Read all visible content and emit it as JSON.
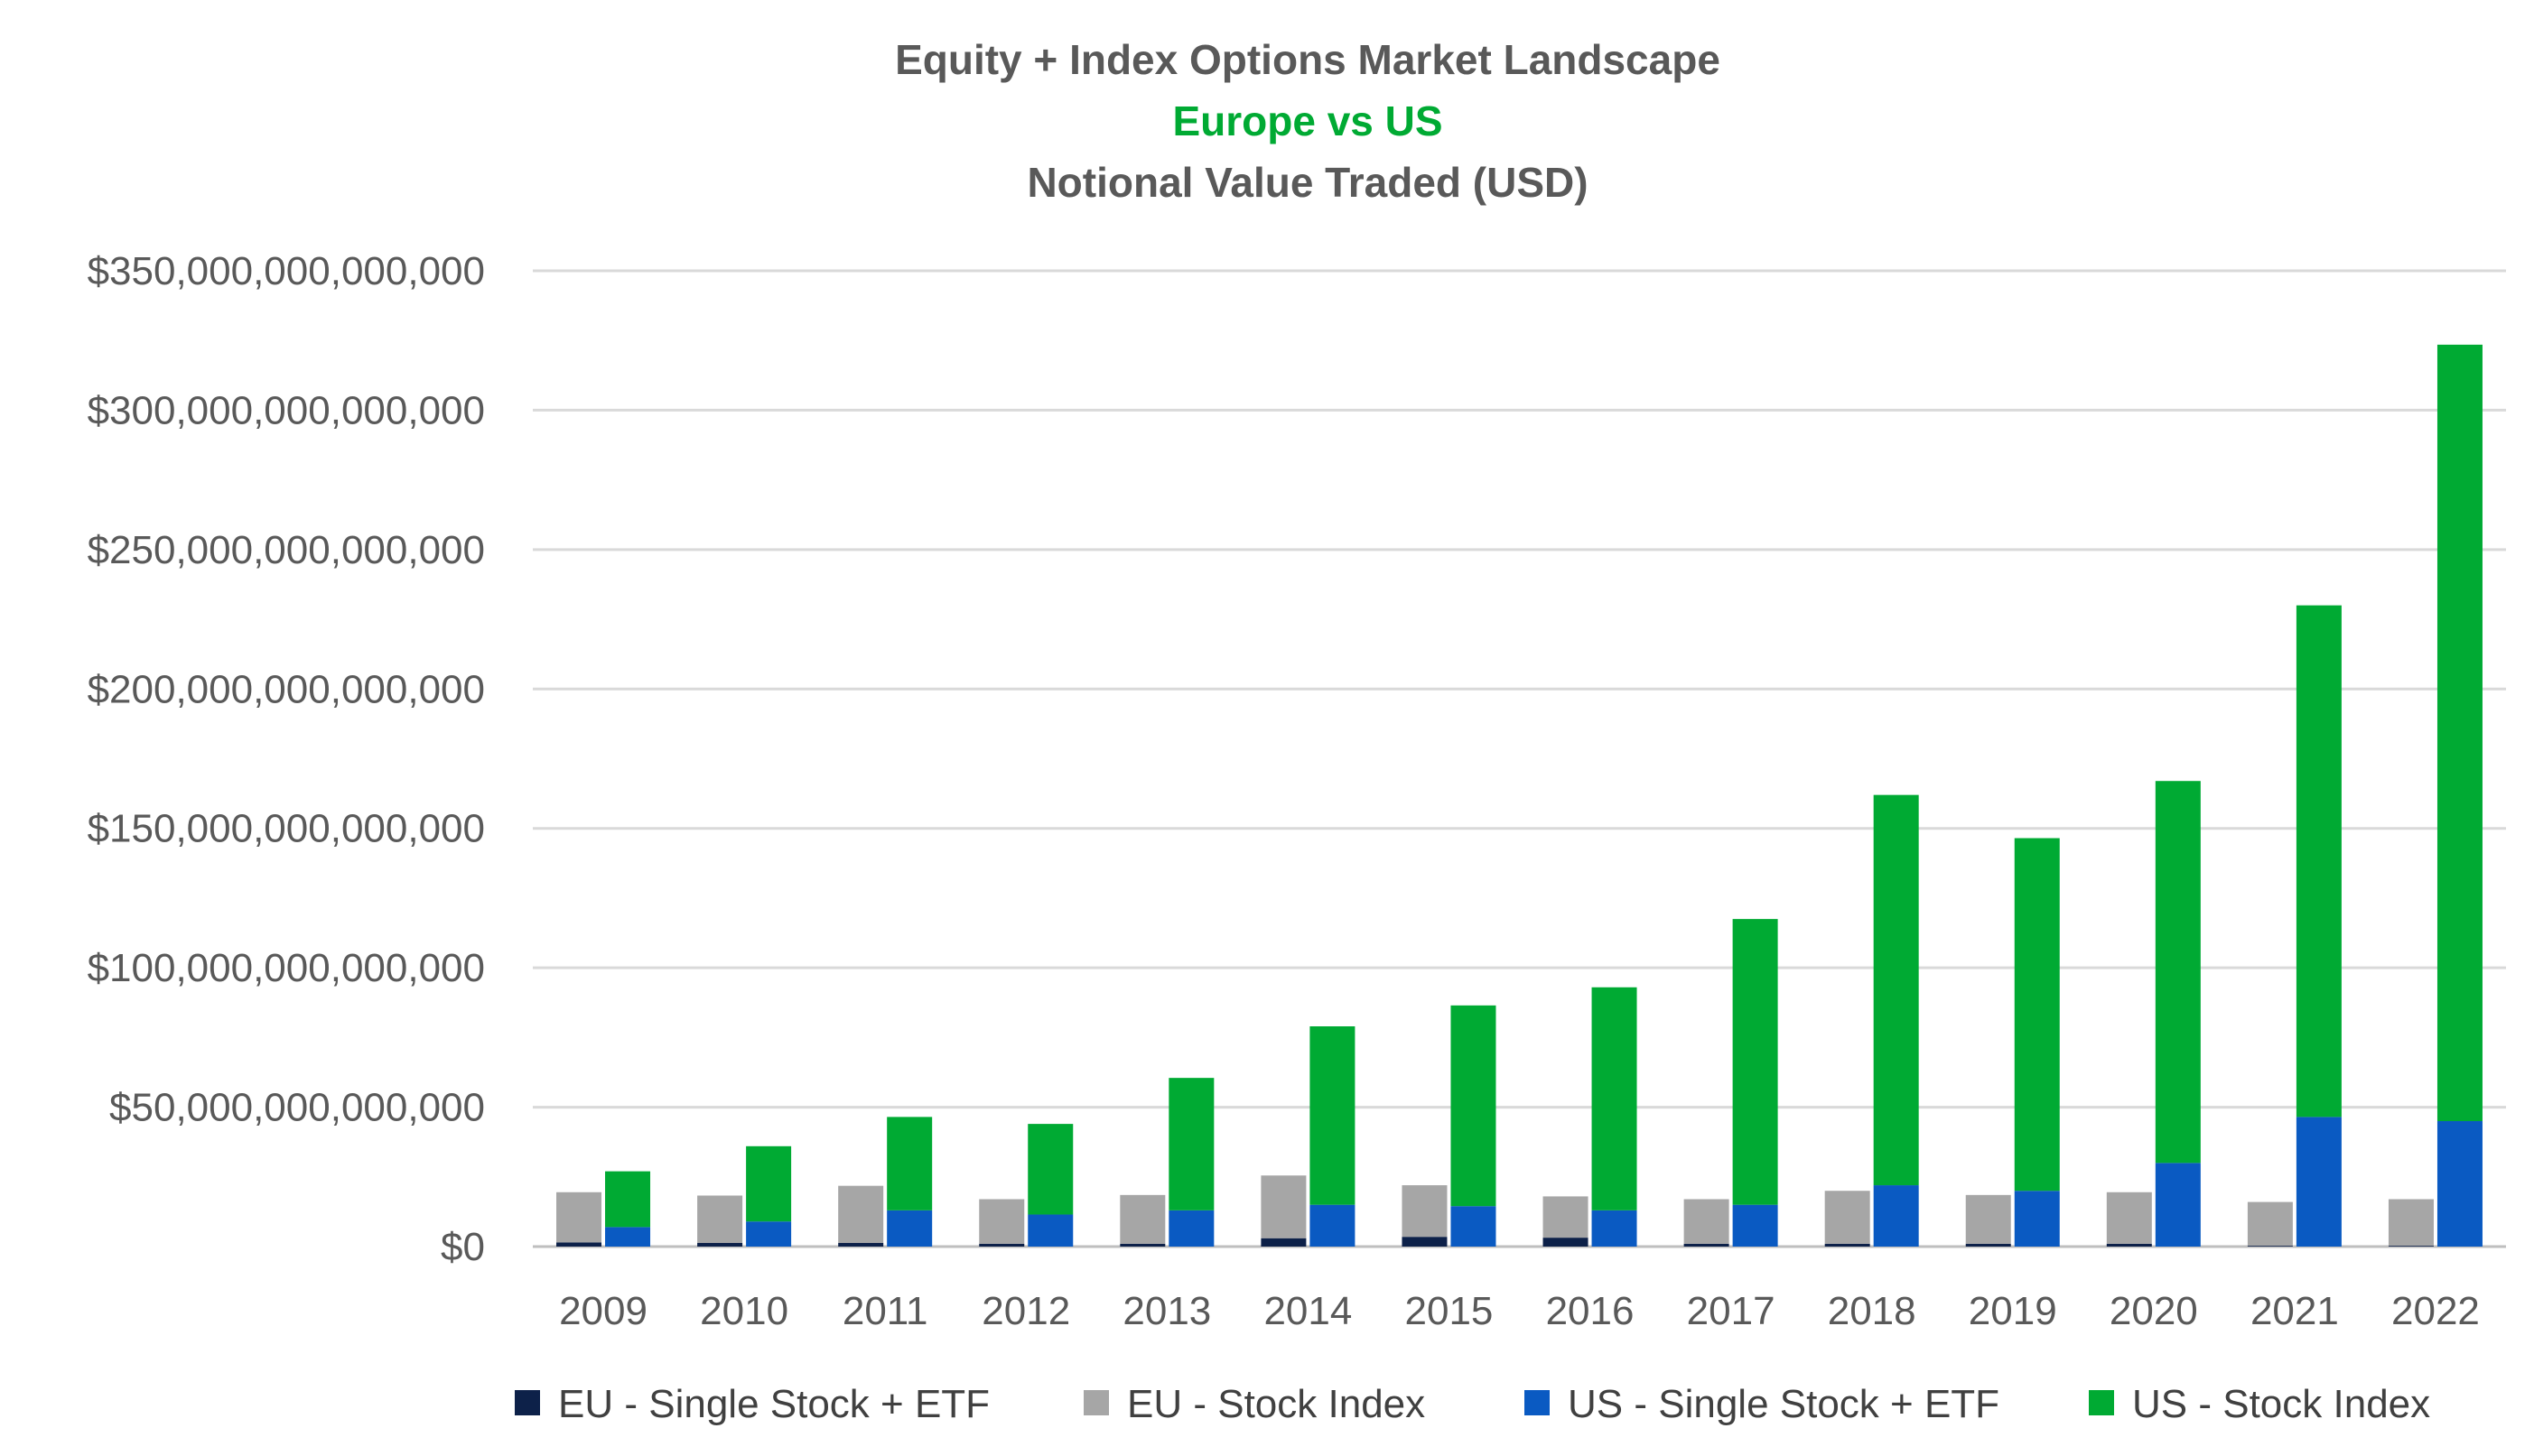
{
  "chart_data": {
    "type": "bar",
    "title": "Equity + Index Options Market Landscape",
    "subtitle": "Europe vs US",
    "subtitle2": "Notional Value Traded (USD)",
    "xlabel": "",
    "ylabel": "",
    "ylim": [
      0,
      350000000000000
    ],
    "yticks": [
      {
        "value": 0,
        "label": "$0"
      },
      {
        "value": 50000000000000,
        "label": "$50,000,000,000,000"
      },
      {
        "value": 100000000000000,
        "label": "$100,000,000,000,000"
      },
      {
        "value": 150000000000000,
        "label": "$150,000,000,000,000"
      },
      {
        "value": 200000000000000,
        "label": "$200,000,000,000,000"
      },
      {
        "value": 250000000000000,
        "label": "$250,000,000,000,000"
      },
      {
        "value": 300000000000000,
        "label": "$300,000,000,000,000"
      },
      {
        "value": 350000000000000,
        "label": "$350,000,000,000,000"
      }
    ],
    "grid": true,
    "legend_position": "bottom",
    "categories": [
      "2009",
      "2010",
      "2011",
      "2012",
      "2013",
      "2014",
      "2015",
      "2016",
      "2017",
      "2018",
      "2019",
      "2020",
      "2021",
      "2022"
    ],
    "series": [
      {
        "name": "EU - Single Stock + ETF",
        "color": "#0d2149",
        "stack": "EU",
        "values": [
          1500000000000.0,
          1300000000000.0,
          1300000000000.0,
          1000000000000.0,
          1000000000000.0,
          3000000000000.0,
          3500000000000.0,
          3200000000000.0,
          1000000000000.0,
          1000000000000.0,
          1000000000000.0,
          1000000000000.0,
          300000000000.0,
          300000000000.0
        ]
      },
      {
        "name": "EU - Stock Index",
        "color": "#a6a6a6",
        "stack": "EU",
        "values": [
          18000000000000.0,
          17000000000000.0,
          20500000000000.0,
          16000000000000.0,
          17500000000000.0,
          22500000000000.0,
          18500000000000.0,
          14800000000000.0,
          16000000000000.0,
          19000000000000.0,
          17500000000000.0,
          18500000000000.0,
          15700000000000.0,
          16700000000000.0
        ]
      },
      {
        "name": "US - Single Stock + ETF",
        "color": "#0a5ac2",
        "stack": "US",
        "values": [
          7000000000000.0,
          9000000000000.0,
          13000000000000.0,
          11500000000000.0,
          13000000000000.0,
          15000000000000.0,
          14500000000000.0,
          13000000000000.0,
          15000000000000.0,
          22000000000000.0,
          20000000000000.0,
          30000000000000.0,
          46500000000000.0,
          45000000000000.0
        ]
      },
      {
        "name": "US - Stock Index",
        "color": "#00aa33",
        "stack": "US",
        "values": [
          20000000000000.0,
          27000000000000.0,
          33500000000000.0,
          32500000000000.0,
          47500000000000.0,
          64000000000000.0,
          72000000000000.0,
          80000000000000.0,
          102500000000000.0,
          140000000000000.0,
          126500000000000.0,
          137000000000000.0,
          183500000000000.0,
          278500000000000.0
        ]
      }
    ]
  },
  "colors": {
    "title": "#595959",
    "subtitle": "#00aa33",
    "grid": "#d9d9d9",
    "axis": "#bfbfbf"
  }
}
